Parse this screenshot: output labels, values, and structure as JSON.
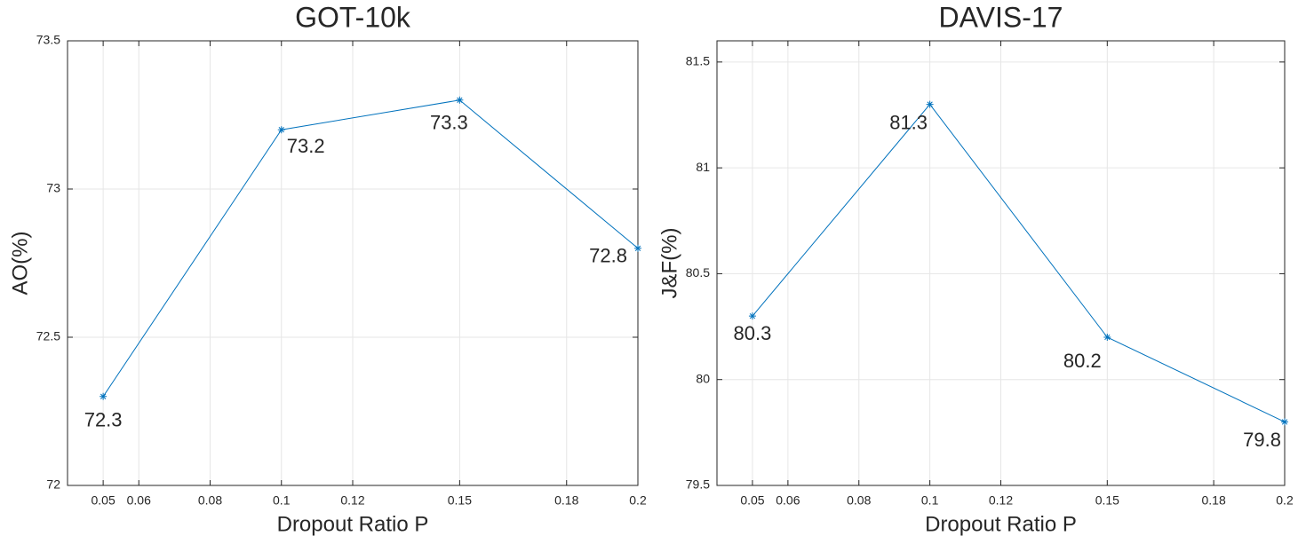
{
  "chart_data": [
    {
      "type": "line",
      "title": "GOT-10k",
      "xlabel": "Dropout Ratio P",
      "ylabel": "AO(%)",
      "x": [
        0.05,
        0.1,
        0.15,
        0.2
      ],
      "series": [
        {
          "color": "#0072bd",
          "values": [
            72.3,
            73.2,
            73.3,
            72.8
          ]
        }
      ],
      "xlim": [
        0.04,
        0.2
      ],
      "xticks": [
        0.05,
        0.06,
        0.08,
        0.1,
        0.12,
        0.15,
        0.18,
        0.2
      ],
      "ylim": [
        72,
        73.5
      ],
      "yticks": [
        72,
        72.5,
        73,
        73.5
      ],
      "grid": true
    },
    {
      "type": "line",
      "title": "DAVIS-17",
      "xlabel": "Dropout Ratio P",
      "ylabel": "J&F(%)",
      "x": [
        0.05,
        0.1,
        0.15,
        0.2
      ],
      "series": [
        {
          "color": "#0072bd",
          "values": [
            80.3,
            81.3,
            80.2,
            79.8
          ]
        }
      ],
      "xlim": [
        0.04,
        0.2
      ],
      "xticks": [
        0.05,
        0.06,
        0.08,
        0.1,
        0.12,
        0.15,
        0.18,
        0.2
      ],
      "ylim": [
        79.5,
        81.6
      ],
      "yticks": [
        79.5,
        80,
        80.5,
        81,
        81.5
      ],
      "grid": true
    }
  ]
}
